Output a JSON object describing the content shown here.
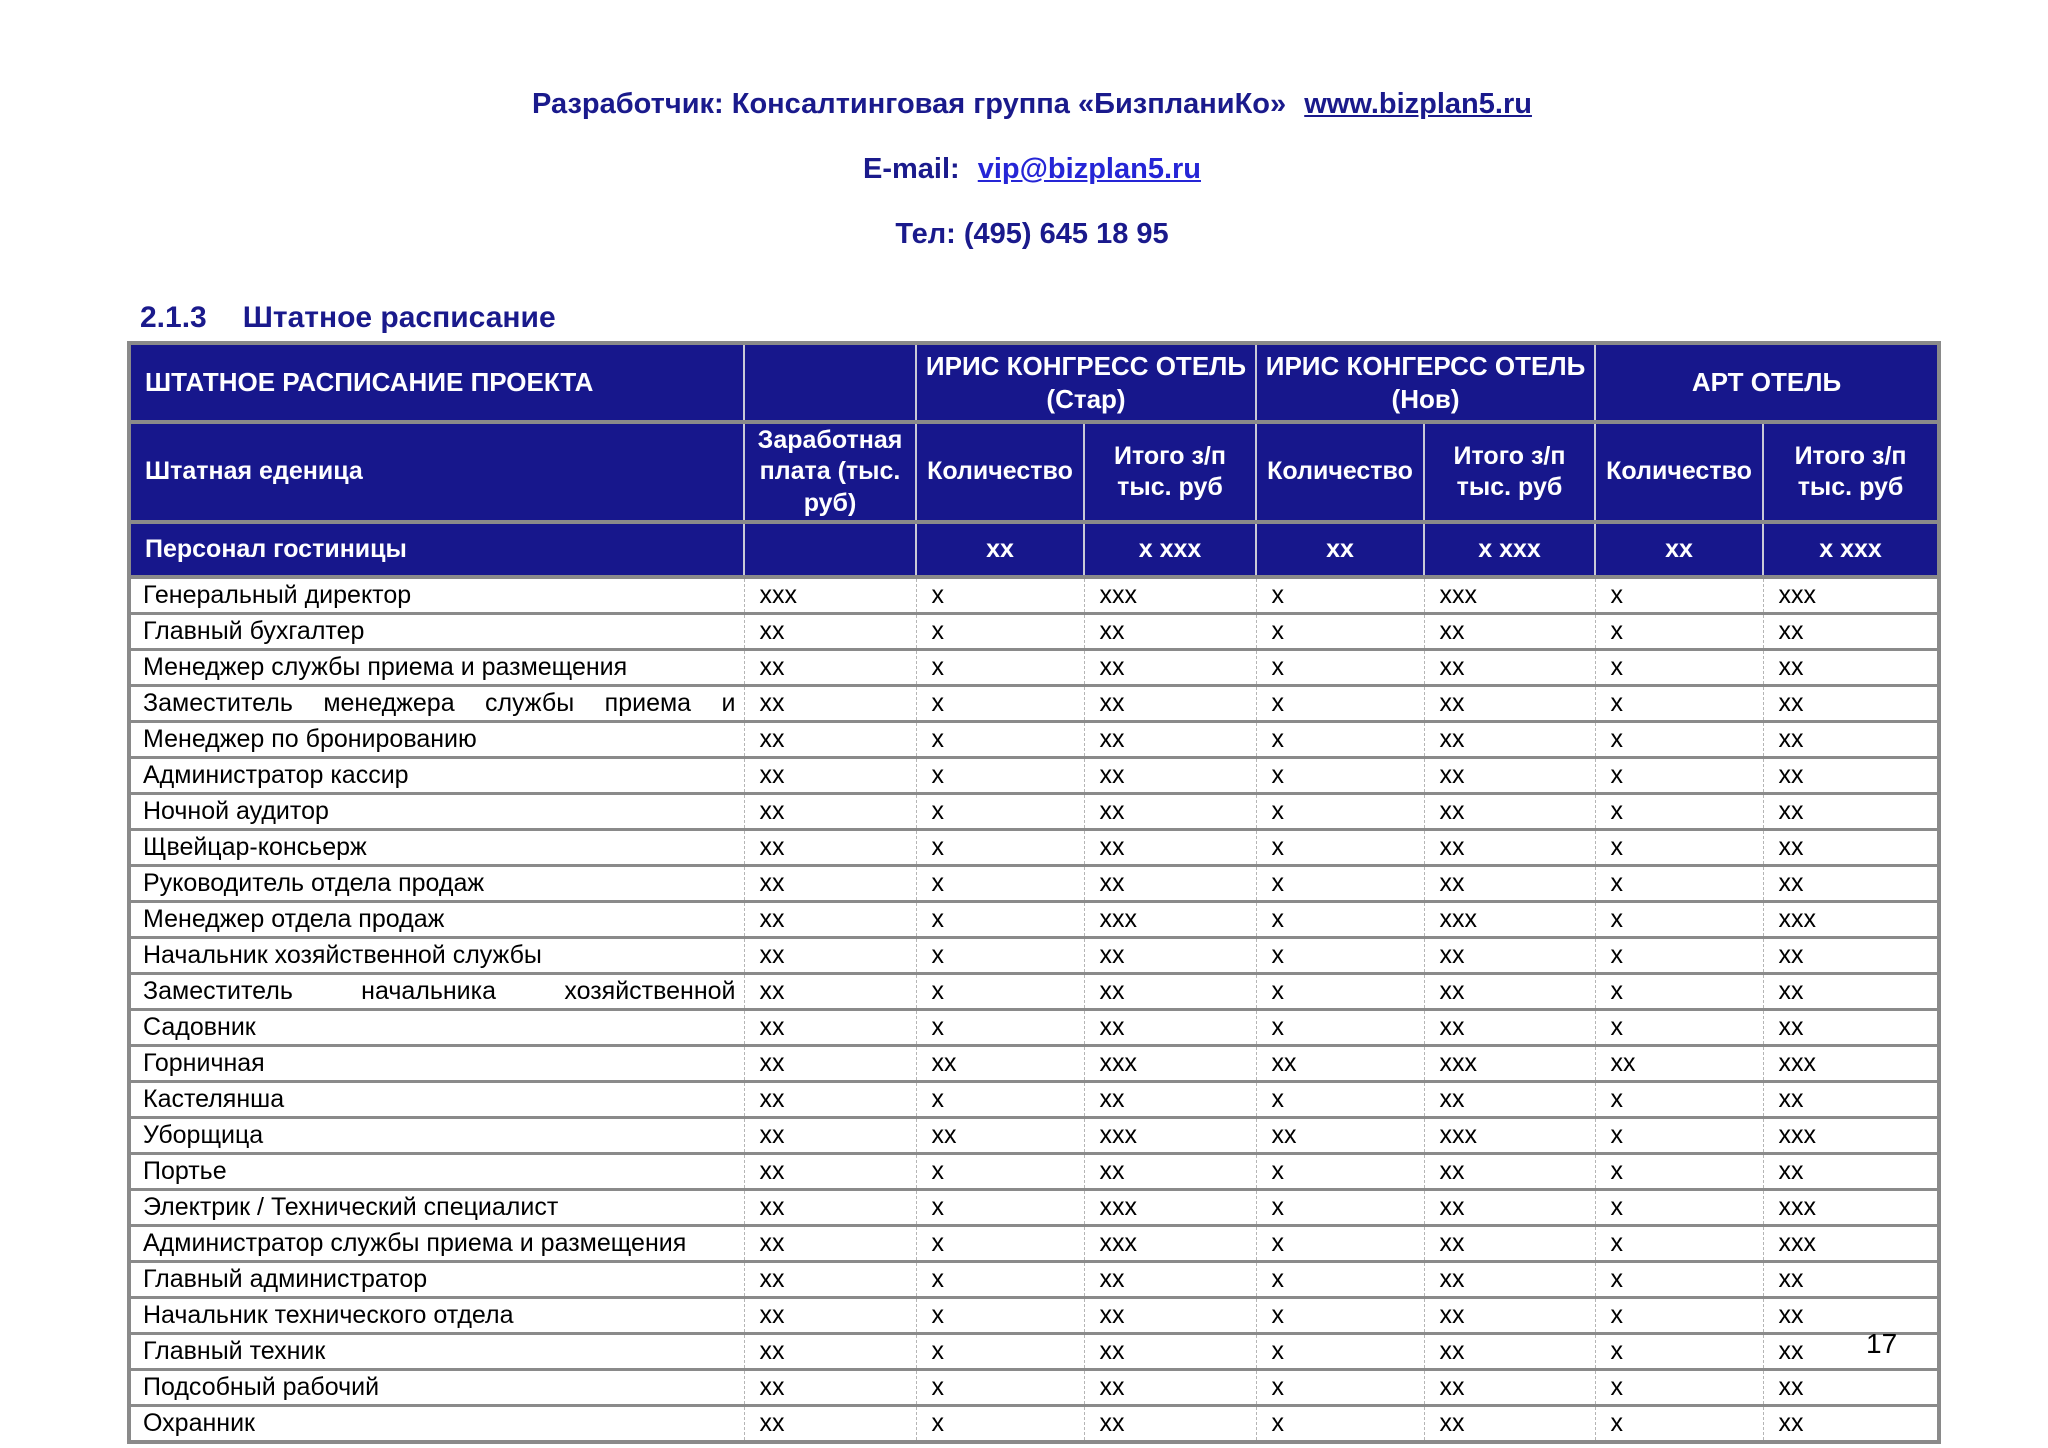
{
  "colors": {
    "header_bg": "#17178c",
    "navy_text": "#1a1a8c",
    "link_blue": "#2525d6"
  },
  "header": {
    "developer_prefix": "Разработчик: Консалтинговая группа «БизпланиКо»",
    "developer_link": "www.bizplan5.ru",
    "email_prefix": "E-mail:",
    "email_link": "vip@bizplan5.ru",
    "phone": "Тел: (495) 645 18 95"
  },
  "section": {
    "number": "2.1.3",
    "title": "Штатное расписание"
  },
  "table": {
    "title": "ШТАТНОЕ РАСПИСАНИЕ ПРОЕКТА",
    "groups": [
      {
        "name": "ИРИС КОНГРЕСС ОТЕЛЬ",
        "variant": "(Стар)"
      },
      {
        "name": "ИРИС КОНГЕРСС ОТЕЛЬ",
        "variant": "(Нов)"
      },
      {
        "name": "АРТ ОТЕЛЬ",
        "variant": ""
      }
    ],
    "columns": {
      "unit": "Штатная еденица",
      "salary": "Заработная плата (тыс. руб)",
      "qty": "Количество",
      "total": "Итого з/п тыс. руб"
    },
    "section_row": {
      "label": "Персонал гостиницы",
      "values": [
        "хх",
        "х ххх",
        "хх",
        "х ххх",
        "хх",
        "х ххх"
      ]
    },
    "rows": [
      {
        "label": "Генеральный директор",
        "justify": false,
        "values": [
          "ххх",
          "х",
          "ххх",
          "х",
          "ххх",
          "х",
          "ххх"
        ]
      },
      {
        "label": "Главный бухгалтер",
        "justify": false,
        "values": [
          "хх",
          "х",
          "хх",
          "х",
          "хх",
          "х",
          "хх"
        ]
      },
      {
        "label": "Менеджер службы приема и размещения",
        "justify": false,
        "values": [
          "хх",
          "х",
          "хх",
          "х",
          "хх",
          "х",
          "хх"
        ]
      },
      {
        "label": "Заместитель менеджера службы приема и",
        "justify": true,
        "values": [
          "хх",
          "х",
          "хх",
          "х",
          "хх",
          "х",
          "хх"
        ]
      },
      {
        "label": "Менеджер по бронированию",
        "justify": false,
        "values": [
          "хх",
          "х",
          "хх",
          "х",
          "хх",
          "х",
          "хх"
        ]
      },
      {
        "label": "Администратор кассир",
        "justify": false,
        "values": [
          "хх",
          "х",
          "хх",
          "х",
          "хх",
          "х",
          "хх"
        ]
      },
      {
        "label": "Ночной аудитор",
        "justify": false,
        "values": [
          "хх",
          "х",
          "хх",
          "х",
          "хх",
          "х",
          "хх"
        ]
      },
      {
        "label": "Щвейцар-консьерж",
        "justify": false,
        "values": [
          "хх",
          "х",
          "хх",
          "х",
          "хх",
          "х",
          "хх"
        ]
      },
      {
        "label": "Руководитель отдела продаж",
        "justify": false,
        "values": [
          "хх",
          "х",
          "хх",
          "х",
          "хх",
          "х",
          "хх"
        ]
      },
      {
        "label": "Менеджер отдела продаж",
        "justify": false,
        "values": [
          "хх",
          "х",
          "ххх",
          "х",
          "ххх",
          "х",
          "ххх"
        ]
      },
      {
        "label": "Начальник хозяйственной службы",
        "justify": false,
        "values": [
          "хх",
          "х",
          "хх",
          "х",
          "хх",
          "х",
          "хх"
        ]
      },
      {
        "label": "Заместитель начальника хозяйственной",
        "justify": true,
        "values": [
          "хх",
          "х",
          "хх",
          "х",
          "хх",
          "х",
          "хх"
        ]
      },
      {
        "label": "Садовник",
        "justify": false,
        "values": [
          "хх",
          "х",
          "хх",
          "х",
          "хх",
          "х",
          "хх"
        ]
      },
      {
        "label": "Горничная",
        "justify": false,
        "values": [
          "хх",
          "хх",
          "ххх",
          "хх",
          "ххх",
          "хх",
          "ххх"
        ]
      },
      {
        "label": "Кастелянша",
        "justify": false,
        "values": [
          "хх",
          "х",
          "хх",
          "х",
          "хх",
          "х",
          "хх"
        ]
      },
      {
        "label": "Уборщица",
        "justify": false,
        "values": [
          "хх",
          "хх",
          "ххх",
          "хх",
          "ххх",
          "х",
          "ххх"
        ]
      },
      {
        "label": "Портье",
        "justify": false,
        "values": [
          "хх",
          "х",
          "хх",
          "х",
          "хх",
          "х",
          "хх"
        ]
      },
      {
        "label": "Электрик / Технический специалист",
        "justify": false,
        "values": [
          "хх",
          "х",
          "ххх",
          "х",
          "хх",
          "х",
          "ххх"
        ]
      },
      {
        "label": "Администратор службы приема и размещения",
        "justify": false,
        "values": [
          "хх",
          "х",
          "ххх",
          "х",
          "хх",
          "х",
          "ххх"
        ]
      },
      {
        "label": "Главный администратор",
        "justify": false,
        "values": [
          "хх",
          "х",
          "хх",
          "х",
          "хх",
          "х",
          "хх"
        ]
      },
      {
        "label": "Начальник технического отдела",
        "justify": false,
        "values": [
          "хх",
          "х",
          "хх",
          "х",
          "хх",
          "х",
          "хх"
        ]
      },
      {
        "label": "Главный техник",
        "justify": false,
        "values": [
          "хх",
          "х",
          "хх",
          "х",
          "хх",
          "х",
          "хх"
        ]
      },
      {
        "label": "Подсобный рабочий",
        "justify": false,
        "values": [
          "хх",
          "х",
          "хх",
          "х",
          "хх",
          "х",
          "хх"
        ]
      },
      {
        "label": "Охранник",
        "justify": false,
        "values": [
          "хх",
          "х",
          "хх",
          "х",
          "хх",
          "х",
          "хх"
        ]
      }
    ]
  },
  "footer": {
    "page_number": "17"
  }
}
